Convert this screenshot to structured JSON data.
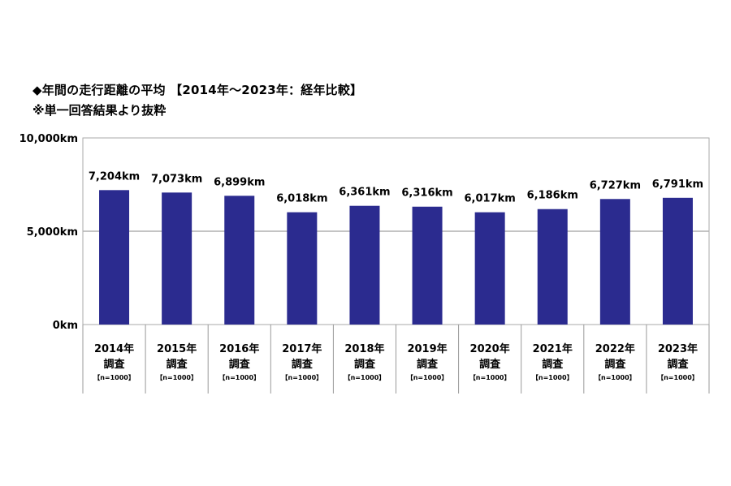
{
  "chart_data": {
    "type": "bar",
    "title": "◆年間の走行距離の平均 【2014年～2023年：経年比較】",
    "subtitle": "※単一回答結果より抜粋",
    "categories": [
      {
        "year": "2014年",
        "sub": "調査",
        "n": "【n=1000】"
      },
      {
        "year": "2015年",
        "sub": "調査",
        "n": "【n=1000】"
      },
      {
        "year": "2016年",
        "sub": "調査",
        "n": "【n=1000】"
      },
      {
        "year": "2017年",
        "sub": "調査",
        "n": "【n=1000】"
      },
      {
        "year": "2018年",
        "sub": "調査",
        "n": "【n=1000】"
      },
      {
        "year": "2019年",
        "sub": "調査",
        "n": "【n=1000】"
      },
      {
        "year": "2020年",
        "sub": "調査",
        "n": "【n=1000】"
      },
      {
        "year": "2021年",
        "sub": "調査",
        "n": "【n=1000】"
      },
      {
        "year": "2022年",
        "sub": "調査",
        "n": "【n=1000】"
      },
      {
        "year": "2023年",
        "sub": "調査",
        "n": "【n=1000】"
      }
    ],
    "values": [
      7204,
      7073,
      6899,
      6018,
      6361,
      6316,
      6017,
      6186,
      6727,
      6791
    ],
    "data_labels": [
      "7,204km",
      "7,073km",
      "6,899km",
      "6,018km",
      "6,361km",
      "6,316km",
      "6,017km",
      "6,186km",
      "6,727km",
      "6,791km"
    ],
    "yticks": [
      {
        "value": 0,
        "label": "0km"
      },
      {
        "value": 5000,
        "label": "5,000km"
      },
      {
        "value": 10000,
        "label": "10,000km"
      }
    ],
    "ylim": [
      0,
      10000
    ],
    "grid": true,
    "colors": {
      "bar": "#2b2b8f",
      "grid": "#b0b0b0",
      "frame": "#aaaaaa",
      "divider": "#999999"
    }
  }
}
